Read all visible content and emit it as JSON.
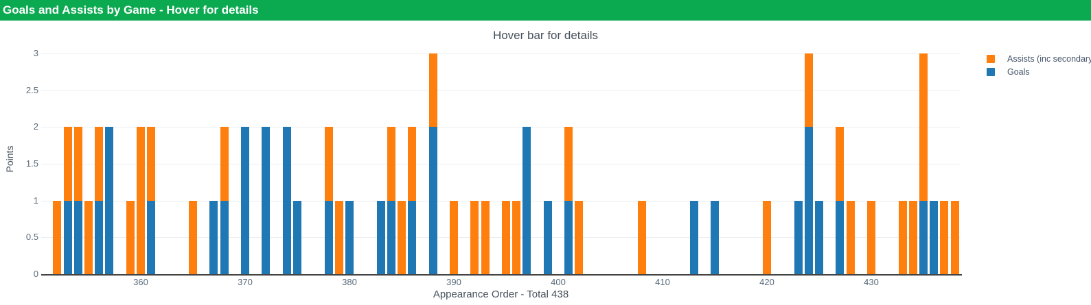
{
  "header": {
    "title": "Goals and Assists by Game - Hover for details",
    "background_color": "#0ba950",
    "text_color": "#ffffff"
  },
  "chart": {
    "title": "Hover bar for details",
    "x_axis_title": "Appearance Order - Total 438",
    "y_axis_title": "Points",
    "legend": [
      {
        "label": "Assists (inc secondary)",
        "color": "#ff7f0e"
      },
      {
        "label": "Goals",
        "color": "#1f77b4"
      }
    ],
    "colors": {
      "grid": "#eceef1",
      "axis_line": "#444444",
      "tick_text": "#5a6b7b",
      "title_text": "#46505a",
      "legend_text": "#44546a"
    }
  },
  "chart_data": {
    "type": "bar",
    "stacked": true,
    "title": "Hover bar for details",
    "xlabel": "Appearance Order - Total 438",
    "ylabel": "Points",
    "legend_position": "right",
    "grid": true,
    "xlim": [
      350.46,
      438.55
    ],
    "ylim": [
      0,
      3.16
    ],
    "xticks": [
      360,
      370,
      380,
      390,
      400,
      410,
      420,
      430
    ],
    "yticks": [
      0,
      0.5,
      1,
      1.5,
      2,
      2.5,
      3
    ],
    "x": [
      352,
      353,
      354,
      355,
      356,
      357,
      359,
      360,
      361,
      365,
      367,
      368,
      370,
      372,
      374,
      375,
      378,
      379,
      380,
      383,
      384,
      385,
      386,
      388,
      390,
      392,
      393,
      395,
      396,
      397,
      399,
      401,
      402,
      408,
      413,
      415,
      420,
      423,
      424,
      425,
      427,
      428,
      430,
      433,
      434,
      435,
      436,
      437,
      438
    ],
    "series": [
      {
        "name": "Goals",
        "color": "#1f77b4",
        "values": [
          0,
          1,
          1,
          0,
          1,
          2,
          0,
          0,
          1,
          0,
          1,
          1,
          2,
          2,
          2,
          1,
          1,
          0,
          1,
          1,
          1,
          0,
          1,
          2,
          0,
          0,
          0,
          0,
          0,
          2,
          1,
          1,
          0,
          0,
          1,
          1,
          0,
          1,
          2,
          1,
          1,
          0,
          0,
          0,
          0,
          1,
          1,
          0,
          0
        ]
      },
      {
        "name": "Assists (inc secondary)",
        "color": "#ff7f0e",
        "values": [
          1,
          1,
          1,
          1,
          1,
          0,
          1,
          2,
          1,
          1,
          0,
          1,
          0,
          0,
          0,
          0,
          1,
          1,
          0,
          0,
          1,
          1,
          1,
          1,
          1,
          1,
          1,
          1,
          1,
          0,
          0,
          1,
          1,
          1,
          0,
          0,
          1,
          0,
          1,
          0,
          1,
          1,
          1,
          1,
          1,
          2,
          0,
          1,
          1
        ]
      }
    ]
  }
}
